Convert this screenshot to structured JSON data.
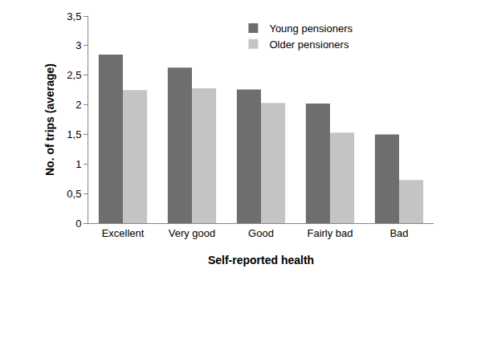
{
  "chart_data": {
    "type": "bar",
    "x_label": "Self-reported health",
    "y_label": "No. of trips (average)",
    "categories": [
      "Excellent",
      "Very good",
      "Good",
      "Fairly bad",
      "Bad"
    ],
    "series": [
      {
        "name": "Young pensioners",
        "color": "#6e6e6e",
        "values": [
          2.85,
          2.63,
          2.26,
          2.02,
          1.5
        ]
      },
      {
        "name": "Older pensioners",
        "color": "#c4c4c4",
        "values": [
          2.25,
          2.28,
          2.03,
          1.53,
          0.73
        ]
      }
    ],
    "ylim": [
      0,
      3.5
    ],
    "yticks": [
      0,
      {
        "value": 0.5,
        "label": "0,5"
      },
      1,
      {
        "value": 1.5,
        "label": "1,5"
      },
      2,
      {
        "value": 2.5,
        "label": "2,5"
      },
      3,
      {
        "value": 3.5,
        "label": "3,5"
      }
    ],
    "grid": false,
    "legend": "upper right"
  }
}
